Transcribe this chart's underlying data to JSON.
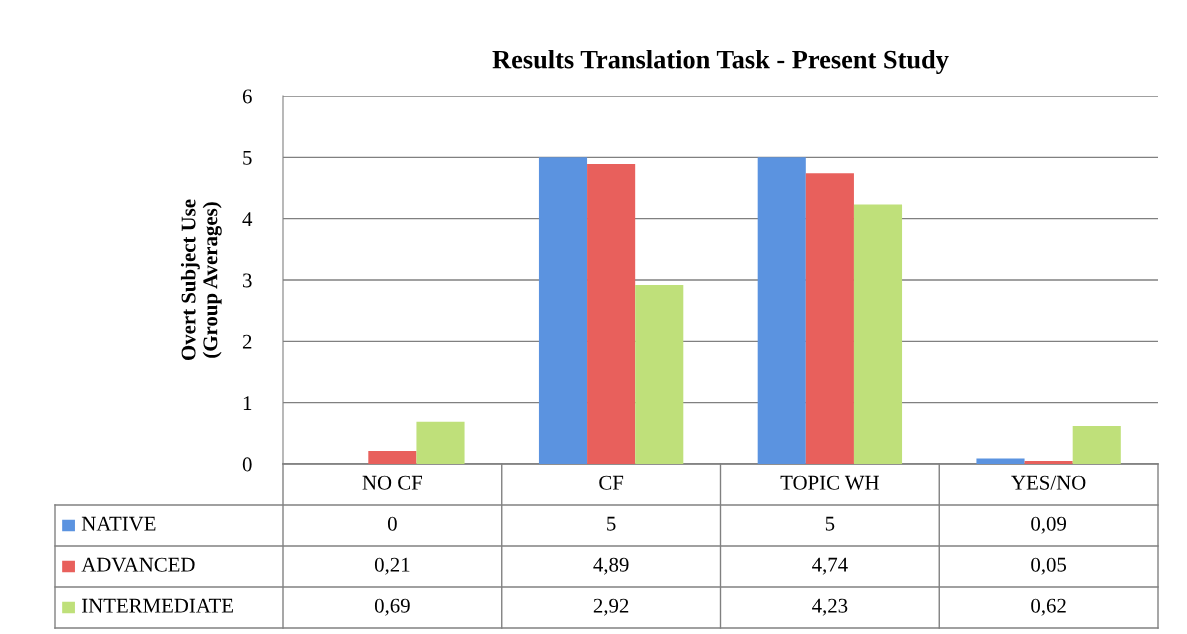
{
  "chart_data": {
    "type": "bar",
    "title": "Results Translation Task - Present Study",
    "ylabel": "Overt Subject Use\n(Group Averages)",
    "categories": [
      "NO CF",
      "CF",
      "TOPIC WH",
      "YES/NO"
    ],
    "series": [
      {
        "name": "NATIVE",
        "color": "#5b93e0",
        "values": [
          0,
          5,
          5,
          0.09
        ],
        "value_labels": [
          "0",
          "5",
          "5",
          "0,09"
        ]
      },
      {
        "name": "ADVANCED",
        "color": "#e8605c",
        "values": [
          0.21,
          4.89,
          4.74,
          0.05
        ],
        "value_labels": [
          "0,21",
          "4,89",
          "4,74",
          "0,05"
        ]
      },
      {
        "name": "INTERMEDIATE",
        "color": "#bfe07a",
        "values": [
          0.69,
          2.92,
          4.23,
          0.62
        ],
        "value_labels": [
          "0,69",
          "2,92",
          "4,23",
          "0,62"
        ]
      }
    ],
    "ylim": [
      0,
      6
    ],
    "yticks": [
      0,
      1,
      2,
      3,
      4,
      5,
      6
    ],
    "grid": "y",
    "legend": "bottom"
  }
}
